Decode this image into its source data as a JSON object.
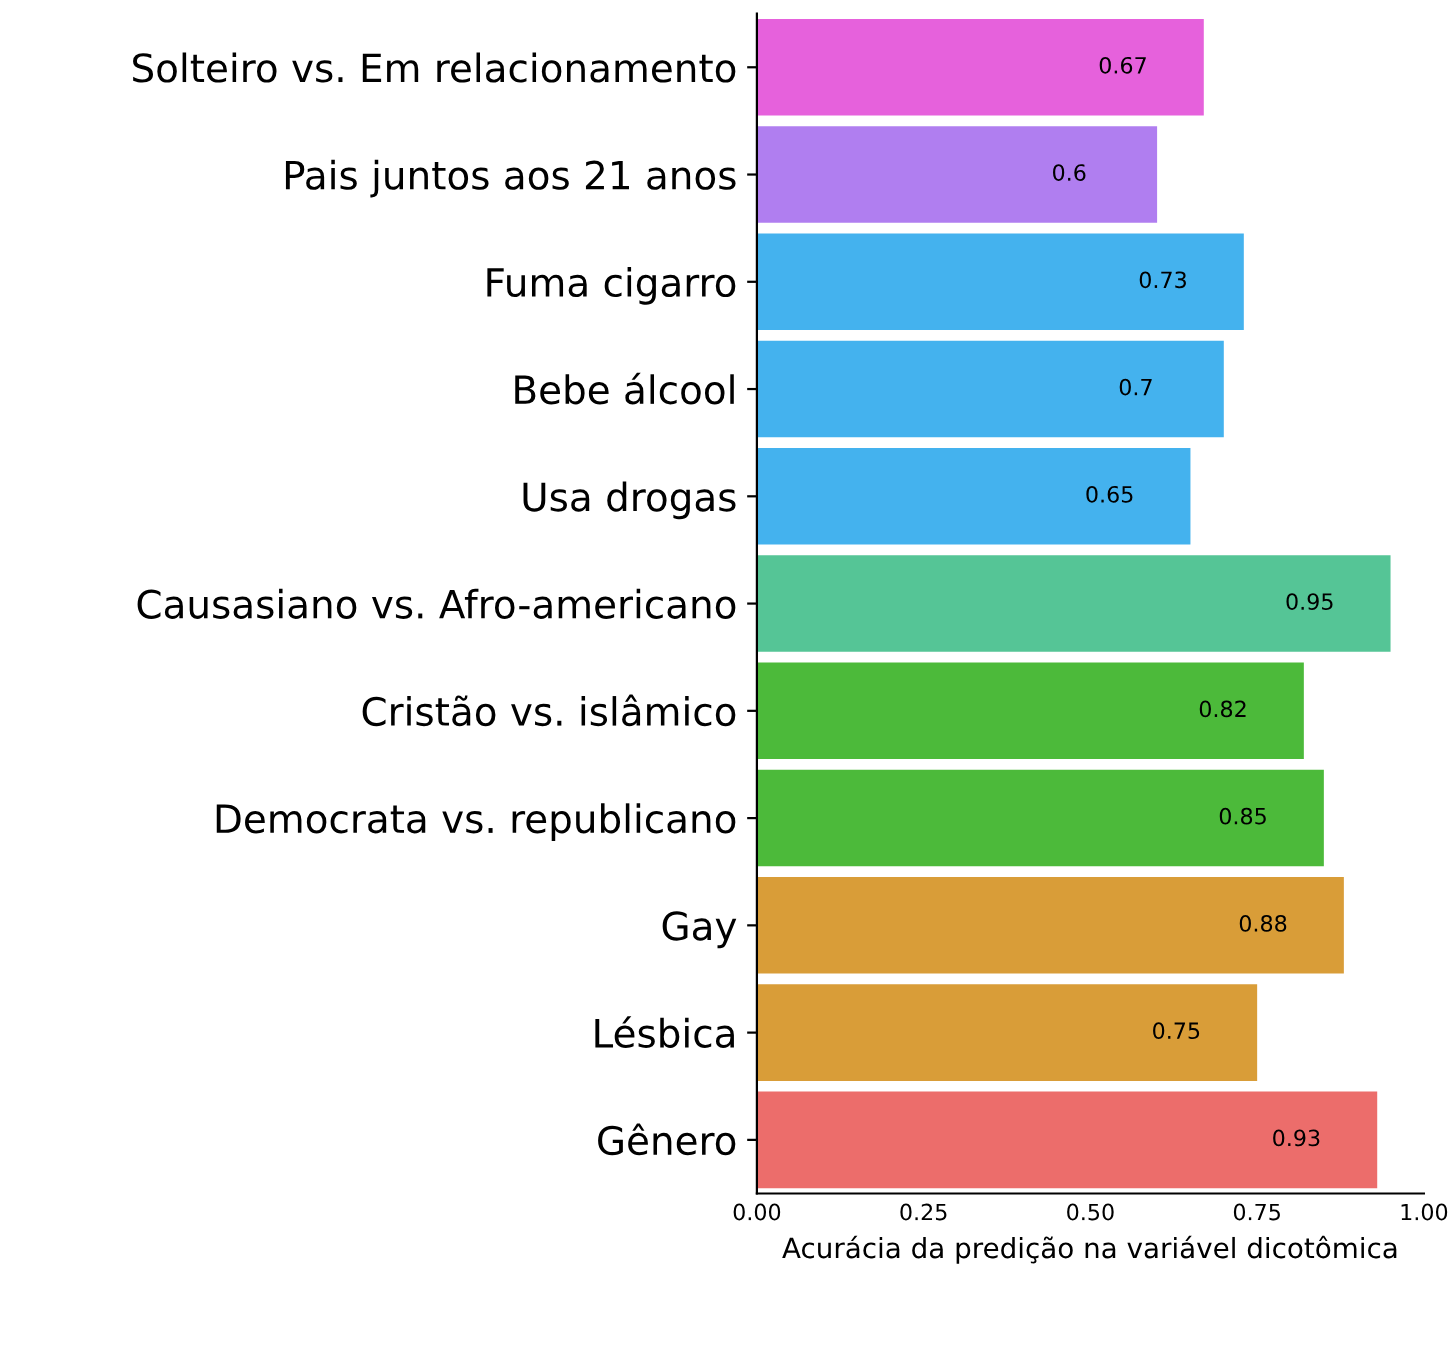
{
  "chart_data": {
    "type": "bar",
    "orientation": "horizontal",
    "xlabel": "Acurácia da predição na variável dicotômica",
    "categories": [
      "Solteiro vs. Em relacionamento",
      "Pais juntos aos 21 anos",
      "Fuma cigarro",
      "Bebe álcool",
      "Usa drogas",
      "Causasiano vs. Afro-americano",
      "Cristão vs. islâmico",
      "Democrata vs. republicano",
      "Gay",
      "Lésbica",
      "Gênero"
    ],
    "values": [
      0.67,
      0.6,
      0.73,
      0.7,
      0.65,
      0.95,
      0.82,
      0.85,
      0.88,
      0.75,
      0.93
    ],
    "colors": [
      "#e661dc",
      "#b07ef0",
      "#44b2ee",
      "#44b2ee",
      "#44b2ee",
      "#55c596",
      "#4cba3a",
      "#4cba3a",
      "#d99d38",
      "#d99d38",
      "#ec6d6b"
    ],
    "xlim": [
      0,
      1
    ],
    "xticks": [
      {
        "value": 0,
        "label": "0.00"
      },
      {
        "value": 0.25,
        "label": "0.25"
      },
      {
        "value": 0.5,
        "label": "0.50"
      },
      {
        "value": 0.75,
        "label": "0.75"
      },
      {
        "value": 1,
        "label": "1.00"
      }
    ],
    "data_labels": true,
    "grid": false
  }
}
